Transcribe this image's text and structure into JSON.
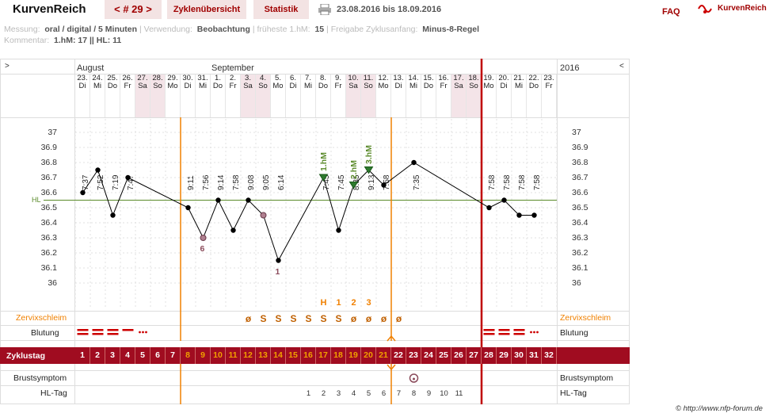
{
  "header": {
    "app_title": "KurvenReich",
    "cycle_nav": "< # 29 >",
    "tab_overview": "Zyklenübersicht",
    "tab_statistics": "Statistik",
    "date_range": "23.08.2016 bis 18.09.2016",
    "faq": "FAQ",
    "logo_text": "KurvenReich"
  },
  "info": {
    "messung_label": "Messung:",
    "messung_value": "oral / digital / 5 Minuten",
    "verwendung_label": "Verwendung:",
    "verwendung_value": "Beobachtung",
    "frueheste_label": "früheste 1.hM:",
    "frueheste_value": "15",
    "freigabe_label": "Freigabe Zyklusanfang:",
    "freigabe_value": "Minus-8-Regel",
    "kommentar_label": "Kommentar:",
    "kommentar_value": "1.hM: 17 || HL: 11"
  },
  "chart": {
    "month_aug": "August",
    "month_sep": "September",
    "year": "2016",
    "nav_left": ">",
    "nav_right": "<",
    "hl_label": "HL",
    "row_zervix": "Zervixschleim",
    "row_blutung": "Blutung",
    "row_zyklustag": "Zyklustag",
    "row_brust": "Brustsymptom",
    "row_hltag": "HL-Tag",
    "copyright": "© http://www.nfp-forum.de",
    "colors": {
      "accent": "#a00c20",
      "orange": "#f08000",
      "green": "#5a8a2a",
      "line": "#000000"
    }
  },
  "chart_data": {
    "type": "line",
    "ylim": [
      36.0,
      37.0
    ],
    "y_ticks": [
      "37",
      "36.9",
      "36.8",
      "36.7",
      "36.6",
      "36.5",
      "36.4",
      "36.3",
      "36.2",
      "36.1",
      "36"
    ],
    "hl_value": 36.55,
    "days": [
      {
        "d": "23.",
        "w": "Di",
        "t": "7:37",
        "cd": "1",
        "temp": 36.6
      },
      {
        "d": "24.",
        "w": "Mi",
        "t": "7:52",
        "cd": "2",
        "temp": 36.75
      },
      {
        "d": "25.",
        "w": "Do",
        "t": "7:19",
        "cd": "3",
        "temp": 36.45
      },
      {
        "d": "26.",
        "w": "Fr",
        "t": "7:47",
        "cd": "4",
        "temp": 36.7
      },
      {
        "d": "27.",
        "w": "Sa",
        "t": "",
        "cd": "5",
        "temp": null
      },
      {
        "d": "28.",
        "w": "So",
        "t": "",
        "cd": "6",
        "temp": null
      },
      {
        "d": "29.",
        "w": "Mo",
        "t": "",
        "cd": "7",
        "temp": null
      },
      {
        "d": "30.",
        "w": "Di",
        "t": "9:11",
        "cd": "8",
        "temp": 36.5
      },
      {
        "d": "31.",
        "w": "Mi",
        "t": "7:56",
        "cd": "9",
        "temp": 36.3
      },
      {
        "d": "1.",
        "w": "Do",
        "t": "9:14",
        "cd": "10",
        "temp": 36.55
      },
      {
        "d": "2.",
        "w": "Fr",
        "t": "7:58",
        "cd": "11",
        "temp": 36.35
      },
      {
        "d": "3.",
        "w": "Sa",
        "t": "9:08",
        "cd": "12",
        "temp": 36.55
      },
      {
        "d": "4.",
        "w": "So",
        "t": "9:05",
        "cd": "13",
        "temp": 36.45
      },
      {
        "d": "5.",
        "w": "Mo",
        "t": "6:14",
        "cd": "14",
        "temp": 36.15
      },
      {
        "d": "6.",
        "w": "Di",
        "t": "",
        "cd": "15",
        "temp": null
      },
      {
        "d": "7.",
        "w": "Mi",
        "t": "",
        "cd": "16",
        "temp": null
      },
      {
        "d": "8.",
        "w": "Do",
        "t": "7:45",
        "cd": "17",
        "temp": 36.7
      },
      {
        "d": "9.",
        "w": "Fr",
        "t": "7:45",
        "cd": "18",
        "temp": 36.35
      },
      {
        "d": "10.",
        "w": "Sa",
        "t": "8:35",
        "cd": "19",
        "temp": 36.65
      },
      {
        "d": "11.",
        "w": "So",
        "t": "9:13",
        "cd": "20",
        "temp": 36.75
      },
      {
        "d": "12.",
        "w": "Mo",
        "t": "7:58",
        "cd": "21",
        "temp": 36.65
      },
      {
        "d": "13.",
        "w": "Di",
        "t": "",
        "cd": "22",
        "temp": null
      },
      {
        "d": "14.",
        "w": "Mi",
        "t": "7:35",
        "cd": "23",
        "temp": 36.8
      },
      {
        "d": "15.",
        "w": "Do",
        "t": "",
        "cd": "24",
        "temp": null
      },
      {
        "d": "16.",
        "w": "Fr",
        "t": "",
        "cd": "25",
        "temp": null
      },
      {
        "d": "17.",
        "w": "Sa",
        "t": "",
        "cd": "26",
        "temp": null
      },
      {
        "d": "18.",
        "w": "So",
        "t": "",
        "cd": "27",
        "temp": null
      },
      {
        "d": "19.",
        "w": "Mo",
        "t": "7:58",
        "cd": "28",
        "temp": 36.5
      },
      {
        "d": "20.",
        "w": "Di",
        "t": "7:58",
        "cd": "29",
        "temp": 36.55
      },
      {
        "d": "21.",
        "w": "Mi",
        "t": "7:58",
        "cd": "30",
        "temp": 36.45
      },
      {
        "d": "22.",
        "w": "Do",
        "t": "7:58",
        "cd": "31",
        "temp": 36.45
      },
      {
        "d": "23.",
        "w": "Fr",
        "t": "",
        "cd": "32",
        "temp": null
      }
    ],
    "annotations": [
      {
        "day": 8,
        "text": "6"
      },
      {
        "day": 12,
        "text": "1"
      },
      {
        "day": 15,
        "text": "1.hM"
      },
      {
        "day": 17,
        "text": "2.hM"
      },
      {
        "day": 18,
        "text": "3.hM"
      }
    ],
    "zervix": [
      {
        "day": 11,
        "text": "ø"
      },
      {
        "day": 12,
        "text": "S"
      },
      {
        "day": 13,
        "text": "S"
      },
      {
        "day": 14,
        "text": "S"
      },
      {
        "day": 15,
        "text": "S"
      },
      {
        "day": 16,
        "text": "S"
      },
      {
        "day": 17,
        "text": "S"
      },
      {
        "day": 18,
        "text": "ø"
      },
      {
        "day": 19,
        "text": "ø"
      },
      {
        "day": 20,
        "text": "ø"
      },
      {
        "day": 21,
        "text": "ø"
      }
    ],
    "zervix_top": [
      {
        "day": 16,
        "text": "H"
      },
      {
        "day": 17,
        "text": "1"
      },
      {
        "day": 18,
        "text": "2"
      },
      {
        "day": 19,
        "text": "3"
      }
    ],
    "hl_tag": [
      {
        "day": 15,
        "text": "1"
      },
      {
        "day": 16,
        "text": "2"
      },
      {
        "day": 17,
        "text": "3"
      },
      {
        "day": 18,
        "text": "4"
      },
      {
        "day": 19,
        "text": "5"
      },
      {
        "day": 20,
        "text": "6"
      },
      {
        "day": 21,
        "text": "7"
      },
      {
        "day": 22,
        "text": "8"
      },
      {
        "day": 23,
        "text": "9"
      },
      {
        "day": 24,
        "text": "10"
      },
      {
        "day": 25,
        "text": "11"
      }
    ]
  }
}
